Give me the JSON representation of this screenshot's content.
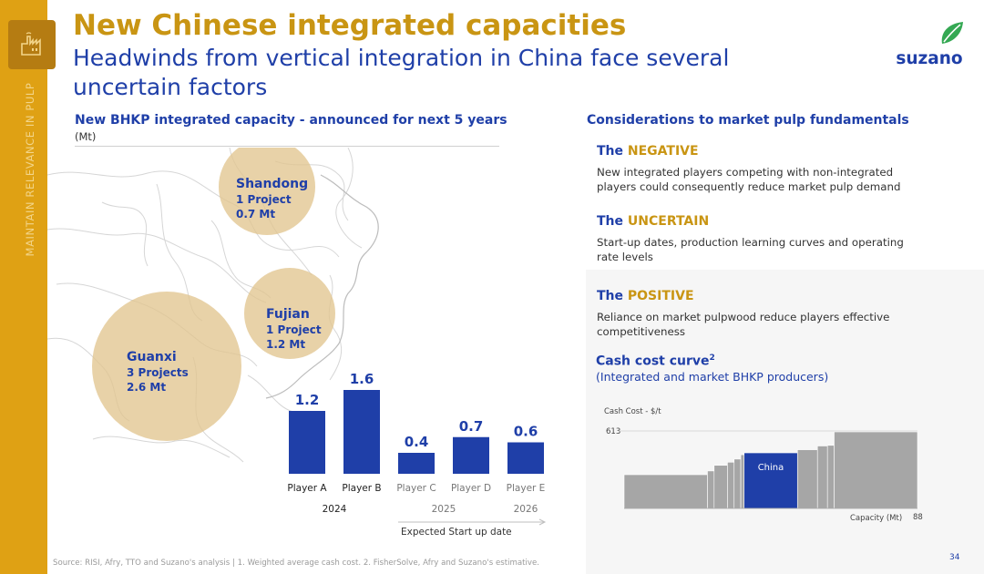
{
  "sidebar": {
    "vertical_text": "MAINTAIN RELEVANCE IN PULP",
    "icon": "factory-icon"
  },
  "header": {
    "title": "New Chinese integrated capacities",
    "subtitle": "Headwinds from vertical integration in China face several uncertain factors"
  },
  "logo": {
    "text": "suzano",
    "icon": "leaf-icon"
  },
  "colors": {
    "gold": "#dfa114",
    "blue": "#1f3fa8",
    "tan": "#e2c58f",
    "grey_bar": "#a6a6a6"
  },
  "left": {
    "heading": "New BHKP integrated capacity - announced for next 5 years",
    "unit": "(Mt)",
    "regions": [
      {
        "name": "Shandong",
        "projects": "1 Project",
        "capacity": "0.7 Mt"
      },
      {
        "name": "Fujian",
        "projects": "1 Project",
        "capacity": "1.2 Mt"
      },
      {
        "name": "Guanxi",
        "projects": "3 Projects",
        "capacity": "2.6 Mt"
      }
    ]
  },
  "chart_data": [
    {
      "type": "bar",
      "categories": [
        "Player A",
        "Player B",
        "Player C",
        "Player D",
        "Player E"
      ],
      "values": [
        1.2,
        1.6,
        0.4,
        0.7,
        0.6
      ],
      "value_labels": [
        "1.2",
        "1.6",
        "0.4",
        "0.7",
        "0.6"
      ],
      "year_groups": [
        {
          "label": "2024",
          "players": [
            "Player A",
            "Player B"
          ]
        },
        {
          "label": "2025",
          "players": [
            "Player C",
            "Player D"
          ]
        },
        {
          "label": "2026",
          "players": [
            "Player E"
          ]
        }
      ],
      "xlabel": "Expected Start up date",
      "ylim": [
        0,
        1.6
      ],
      "grid": false
    },
    {
      "type": "bar",
      "title": "Cash cost curve",
      "title_sup": "2",
      "subtitle": "(Integrated and market BHKP producers)",
      "ylabel": "Cash Cost - $/t",
      "y_top_label": "613",
      "xlabel": "Capacity (Mt)",
      "x_end_label": "88",
      "highlight": "China",
      "series": [
        {
          "name": "China",
          "x_start": 36,
          "x_end": 52,
          "value": 445
        }
      ],
      "steps": [
        {
          "x_start": 0,
          "x_end": 25,
          "value": 270
        },
        {
          "x_start": 25,
          "x_end": 27,
          "value": 300
        },
        {
          "x_start": 27,
          "x_end": 31,
          "value": 345
        },
        {
          "x_start": 31,
          "x_end": 33,
          "value": 370
        },
        {
          "x_start": 33,
          "x_end": 35,
          "value": 395
        },
        {
          "x_start": 35,
          "x_end": 36,
          "value": 430
        },
        {
          "x_start": 36,
          "x_end": 52,
          "value": 445
        },
        {
          "x_start": 52,
          "x_end": 58,
          "value": 470
        },
        {
          "x_start": 58,
          "x_end": 61,
          "value": 500
        },
        {
          "x_start": 61,
          "x_end": 63,
          "value": 505
        },
        {
          "x_start": 63,
          "x_end": 88,
          "value": 613
        }
      ],
      "xlim": [
        0,
        88
      ],
      "ylim": [
        0,
        650
      ],
      "grid": false
    }
  ],
  "right": {
    "heading": "Considerations to market pulp fundamentals",
    "items": [
      {
        "prefix": "The ",
        "highlight": "NEGATIVE",
        "text": "New integrated players competing with non-integrated players could consequently reduce market pulp demand"
      },
      {
        "prefix": "The ",
        "highlight": "UNCERTAIN",
        "text": "Start-up dates, production learning curves and operating rate levels"
      },
      {
        "prefix": "The ",
        "highlight": "POSITIVE",
        "text": "Reliance on market pulpwood reduce players effective competitiveness"
      }
    ]
  },
  "footer": {
    "source": "Source: RISI, Afry, TTO and Suzano's analysis | 1. Weighted average cash cost. 2. FisherSolve, Afry and Suzano's estimative.",
    "page": "34"
  }
}
